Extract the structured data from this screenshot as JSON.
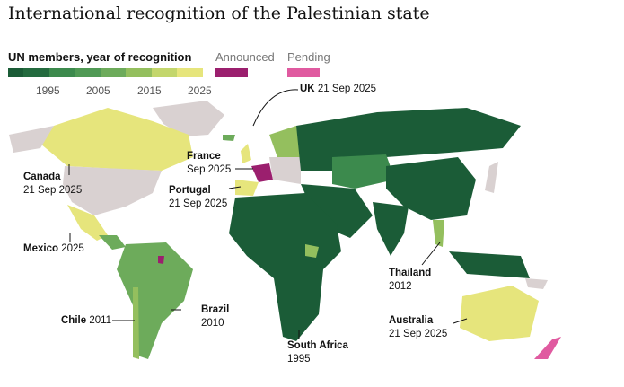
{
  "title": "International recognition of the Palestinian state",
  "legend": {
    "title": "UN members, year of recognition",
    "scale_colors": [
      "#1b5c37",
      "#246b3f",
      "#3c8a4d",
      "#509a55",
      "#6dab5b",
      "#94bf5e",
      "#c3d66c",
      "#e6e57c"
    ],
    "ticks": [
      "1995",
      "2005",
      "2015",
      "2025"
    ],
    "announced": {
      "label": "Announced",
      "color": "#9b1f6e"
    },
    "pending": {
      "label": "Pending",
      "color": "#e05aa0"
    }
  },
  "colors": {
    "other": "#d9d1d1",
    "early": "#1d5e38",
    "mid": "#6aaa5a",
    "recent": "#e6e57c"
  },
  "labels": {
    "uk": {
      "name": "UK",
      "detail": "21 Sep 2025"
    },
    "france": {
      "name": "France",
      "detail": "Sep 2025"
    },
    "canada": {
      "name": "Canada",
      "detail": "21 Sep 2025"
    },
    "portugal": {
      "name": "Portugal",
      "detail": "21 Sep 2025"
    },
    "mexico": {
      "name": "Mexico",
      "detail": "2025"
    },
    "thailand": {
      "name": "Thailand",
      "detail": "2012"
    },
    "brazil": {
      "name": "Brazil",
      "detail": "2010"
    },
    "chile": {
      "name": "Chile",
      "detail": "2011"
    },
    "australia": {
      "name": "Australia",
      "detail": "21 Sep 2025"
    },
    "south_africa": {
      "name": "South Africa",
      "detail": "1995"
    }
  }
}
